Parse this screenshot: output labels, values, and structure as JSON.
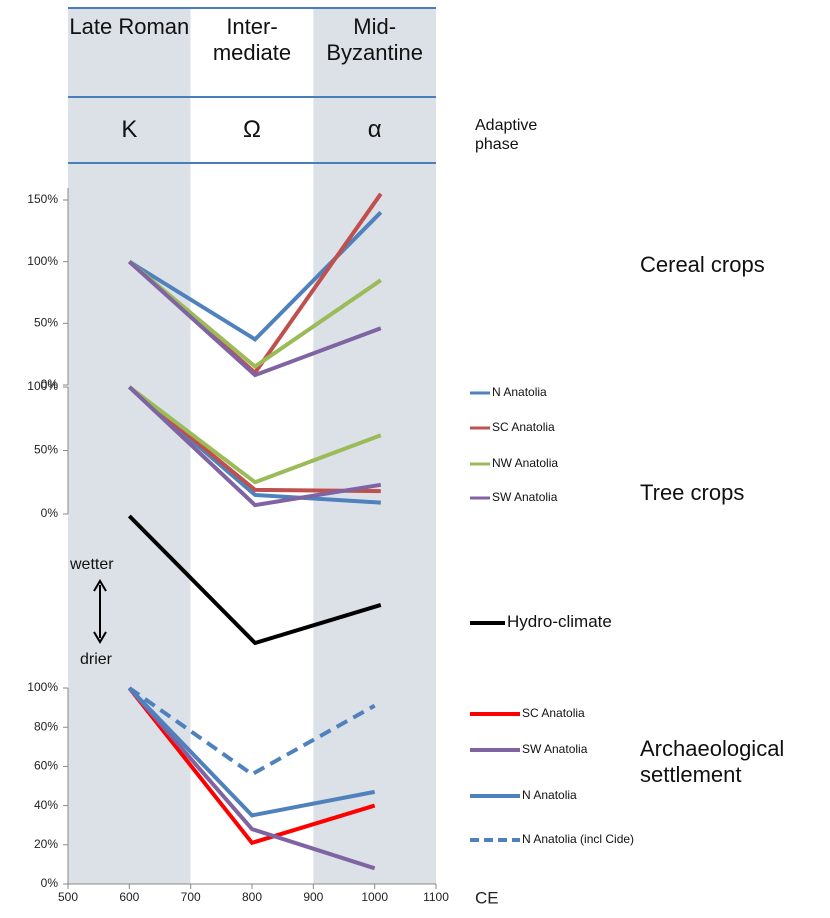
{
  "header": {
    "columns": [
      {
        "period": "Late Roman",
        "phase": "K",
        "range": [
          500,
          700
        ],
        "shaded": true
      },
      {
        "period": "Inter-mediate",
        "phase": "Ω",
        "range": [
          700,
          900
        ],
        "shaded": false
      },
      {
        "period": "Mid-Byzantine",
        "phase": "α",
        "range": [
          900,
          1100
        ],
        "shaded": true
      }
    ],
    "adaptive_label": "Adaptive phase"
  },
  "chart_data": [
    {
      "type": "line",
      "label": "Cereal crops",
      "x": [
        600,
        805,
        1010
      ],
      "ylim": [
        0,
        150
      ],
      "yticks": [
        {
          "value": 0,
          "label": "0%"
        },
        {
          "value": 50,
          "label": "50%"
        },
        {
          "value": 100,
          "label": "100%"
        },
        {
          "value": 150,
          "label": "150%"
        }
      ],
      "legend": true,
      "series": [
        {
          "name": "N Anatolia",
          "color": "#4f81bd",
          "values": [
            100,
            37,
            140
          ]
        },
        {
          "name": "SC Anatolia",
          "color": "#c0504d",
          "values": [
            100,
            10,
            155
          ]
        },
        {
          "name": "NW Anatolia",
          "color": "#9bbb59",
          "values": [
            100,
            15,
            85
          ]
        },
        {
          "name": "SW Anatolia",
          "color": "#8064a2",
          "values": [
            100,
            8,
            46
          ]
        }
      ]
    },
    {
      "type": "line",
      "label": "Tree crops",
      "x": [
        600,
        805,
        1010
      ],
      "ylim": [
        0,
        100
      ],
      "yticks": [
        {
          "value": 0,
          "label": "0%"
        },
        {
          "value": 50,
          "label": "50%"
        },
        {
          "value": 100,
          "label": "100%"
        }
      ],
      "legend": false,
      "series": [
        {
          "color": "#4f81bd",
          "values": [
            100,
            15,
            9
          ]
        },
        {
          "color": "#c0504d",
          "values": [
            100,
            19,
            18
          ]
        },
        {
          "color": "#9bbb59",
          "values": [
            100,
            25,
            62
          ]
        },
        {
          "color": "#8064a2",
          "values": [
            100,
            7,
            23
          ]
        }
      ]
    },
    {
      "type": "line",
      "x": [
        600,
        805,
        1010
      ],
      "ylim": [
        -1,
        0
      ],
      "legend": true,
      "annotations": [
        "wetter",
        "drier"
      ],
      "series": [
        {
          "name": "Hydro-climate",
          "color": "#000000",
          "values": [
            0,
            -1,
            -0.7
          ]
        }
      ]
    },
    {
      "type": "line",
      "label": "Archaeological settlement",
      "x": [
        600,
        800,
        1000
      ],
      "ylim": [
        0,
        100
      ],
      "yticks": [
        {
          "value": 0,
          "label": "0%"
        },
        {
          "value": 20,
          "label": "20%"
        },
        {
          "value": 40,
          "label": "40%"
        },
        {
          "value": 60,
          "label": "60%"
        },
        {
          "value": 80,
          "label": "80%"
        },
        {
          "value": 100,
          "label": "100%"
        }
      ],
      "xlim": [
        500,
        1100
      ],
      "xticks": [
        500,
        600,
        700,
        800,
        900,
        1000,
        1100
      ],
      "xlabel": "CE",
      "legend": true,
      "series": [
        {
          "name": "SC Anatolia",
          "color": "#ff0000",
          "values": [
            100,
            21,
            40
          ]
        },
        {
          "name": "SW Anatolia",
          "color": "#8064a2",
          "values": [
            100,
            28,
            8
          ]
        },
        {
          "name": "N Anatolia",
          "color": "#4f81bd",
          "values": [
            100,
            35,
            47
          ]
        },
        {
          "name": "N Anatolia (incl Cide)",
          "color": "#4f81bd",
          "dash": true,
          "values": [
            100,
            56,
            91
          ]
        }
      ]
    }
  ]
}
